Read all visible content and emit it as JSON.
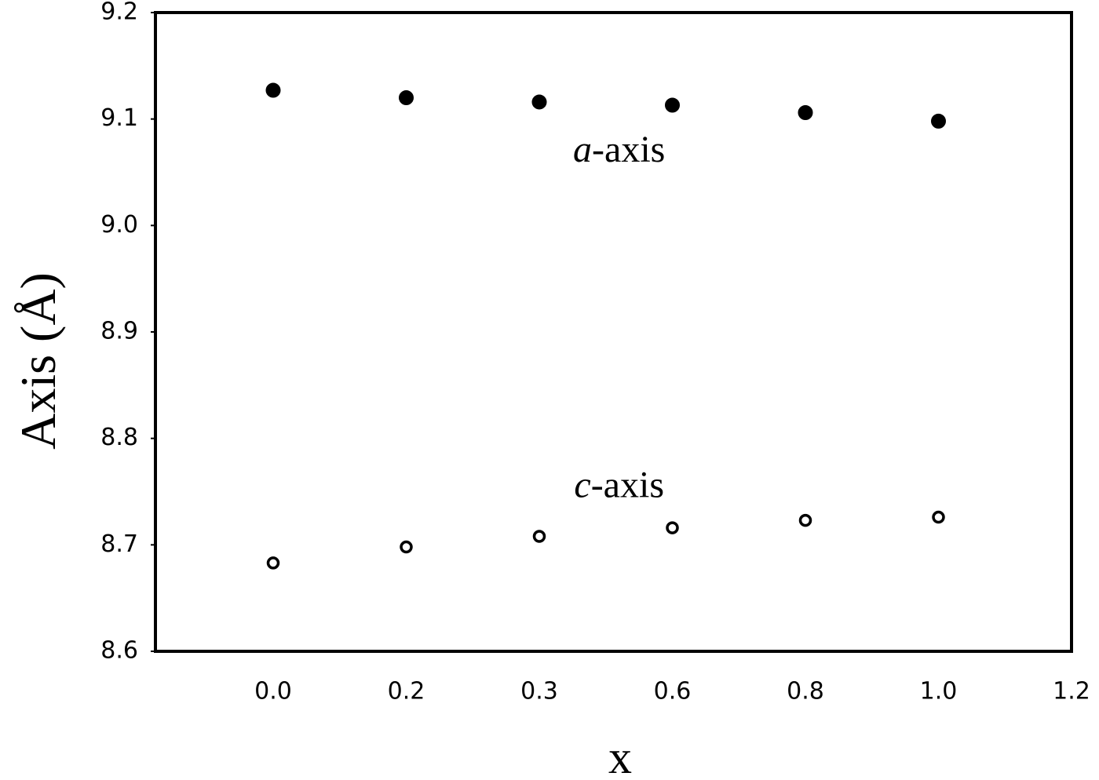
{
  "chart_data": {
    "type": "scatter",
    "y_label": "Axis (Å)",
    "x_label": "x",
    "categories": [
      "0.0",
      "0.2",
      "0.3",
      "0.6",
      "0.8",
      "1.0",
      "1.2"
    ],
    "series": [
      {
        "name": "a-axis",
        "color": "#000000",
        "filled": true,
        "values": [
          9.127,
          9.12,
          9.116,
          9.113,
          9.106,
          9.098,
          null
        ]
      },
      {
        "name": "c-axis",
        "color": "#000000",
        "filled": false,
        "values": [
          8.683,
          8.698,
          8.708,
          8.716,
          8.723,
          8.726,
          null
        ]
      }
    ],
    "annotations": [
      {
        "italic": "a",
        "text": "-axis",
        "x": 2.6,
        "y": 9.06
      },
      {
        "italic": "c",
        "text": "-axis",
        "x": 2.6,
        "y": 8.745
      }
    ],
    "ylim": [
      8.6,
      9.2
    ],
    "yticks": [
      8.6,
      {
        "value": 8.7,
        "label": "8.7"
      },
      8.8,
      8.9,
      {
        "value": 9,
        "label": "9.0"
      },
      9.1,
      9.2
    ]
  }
}
